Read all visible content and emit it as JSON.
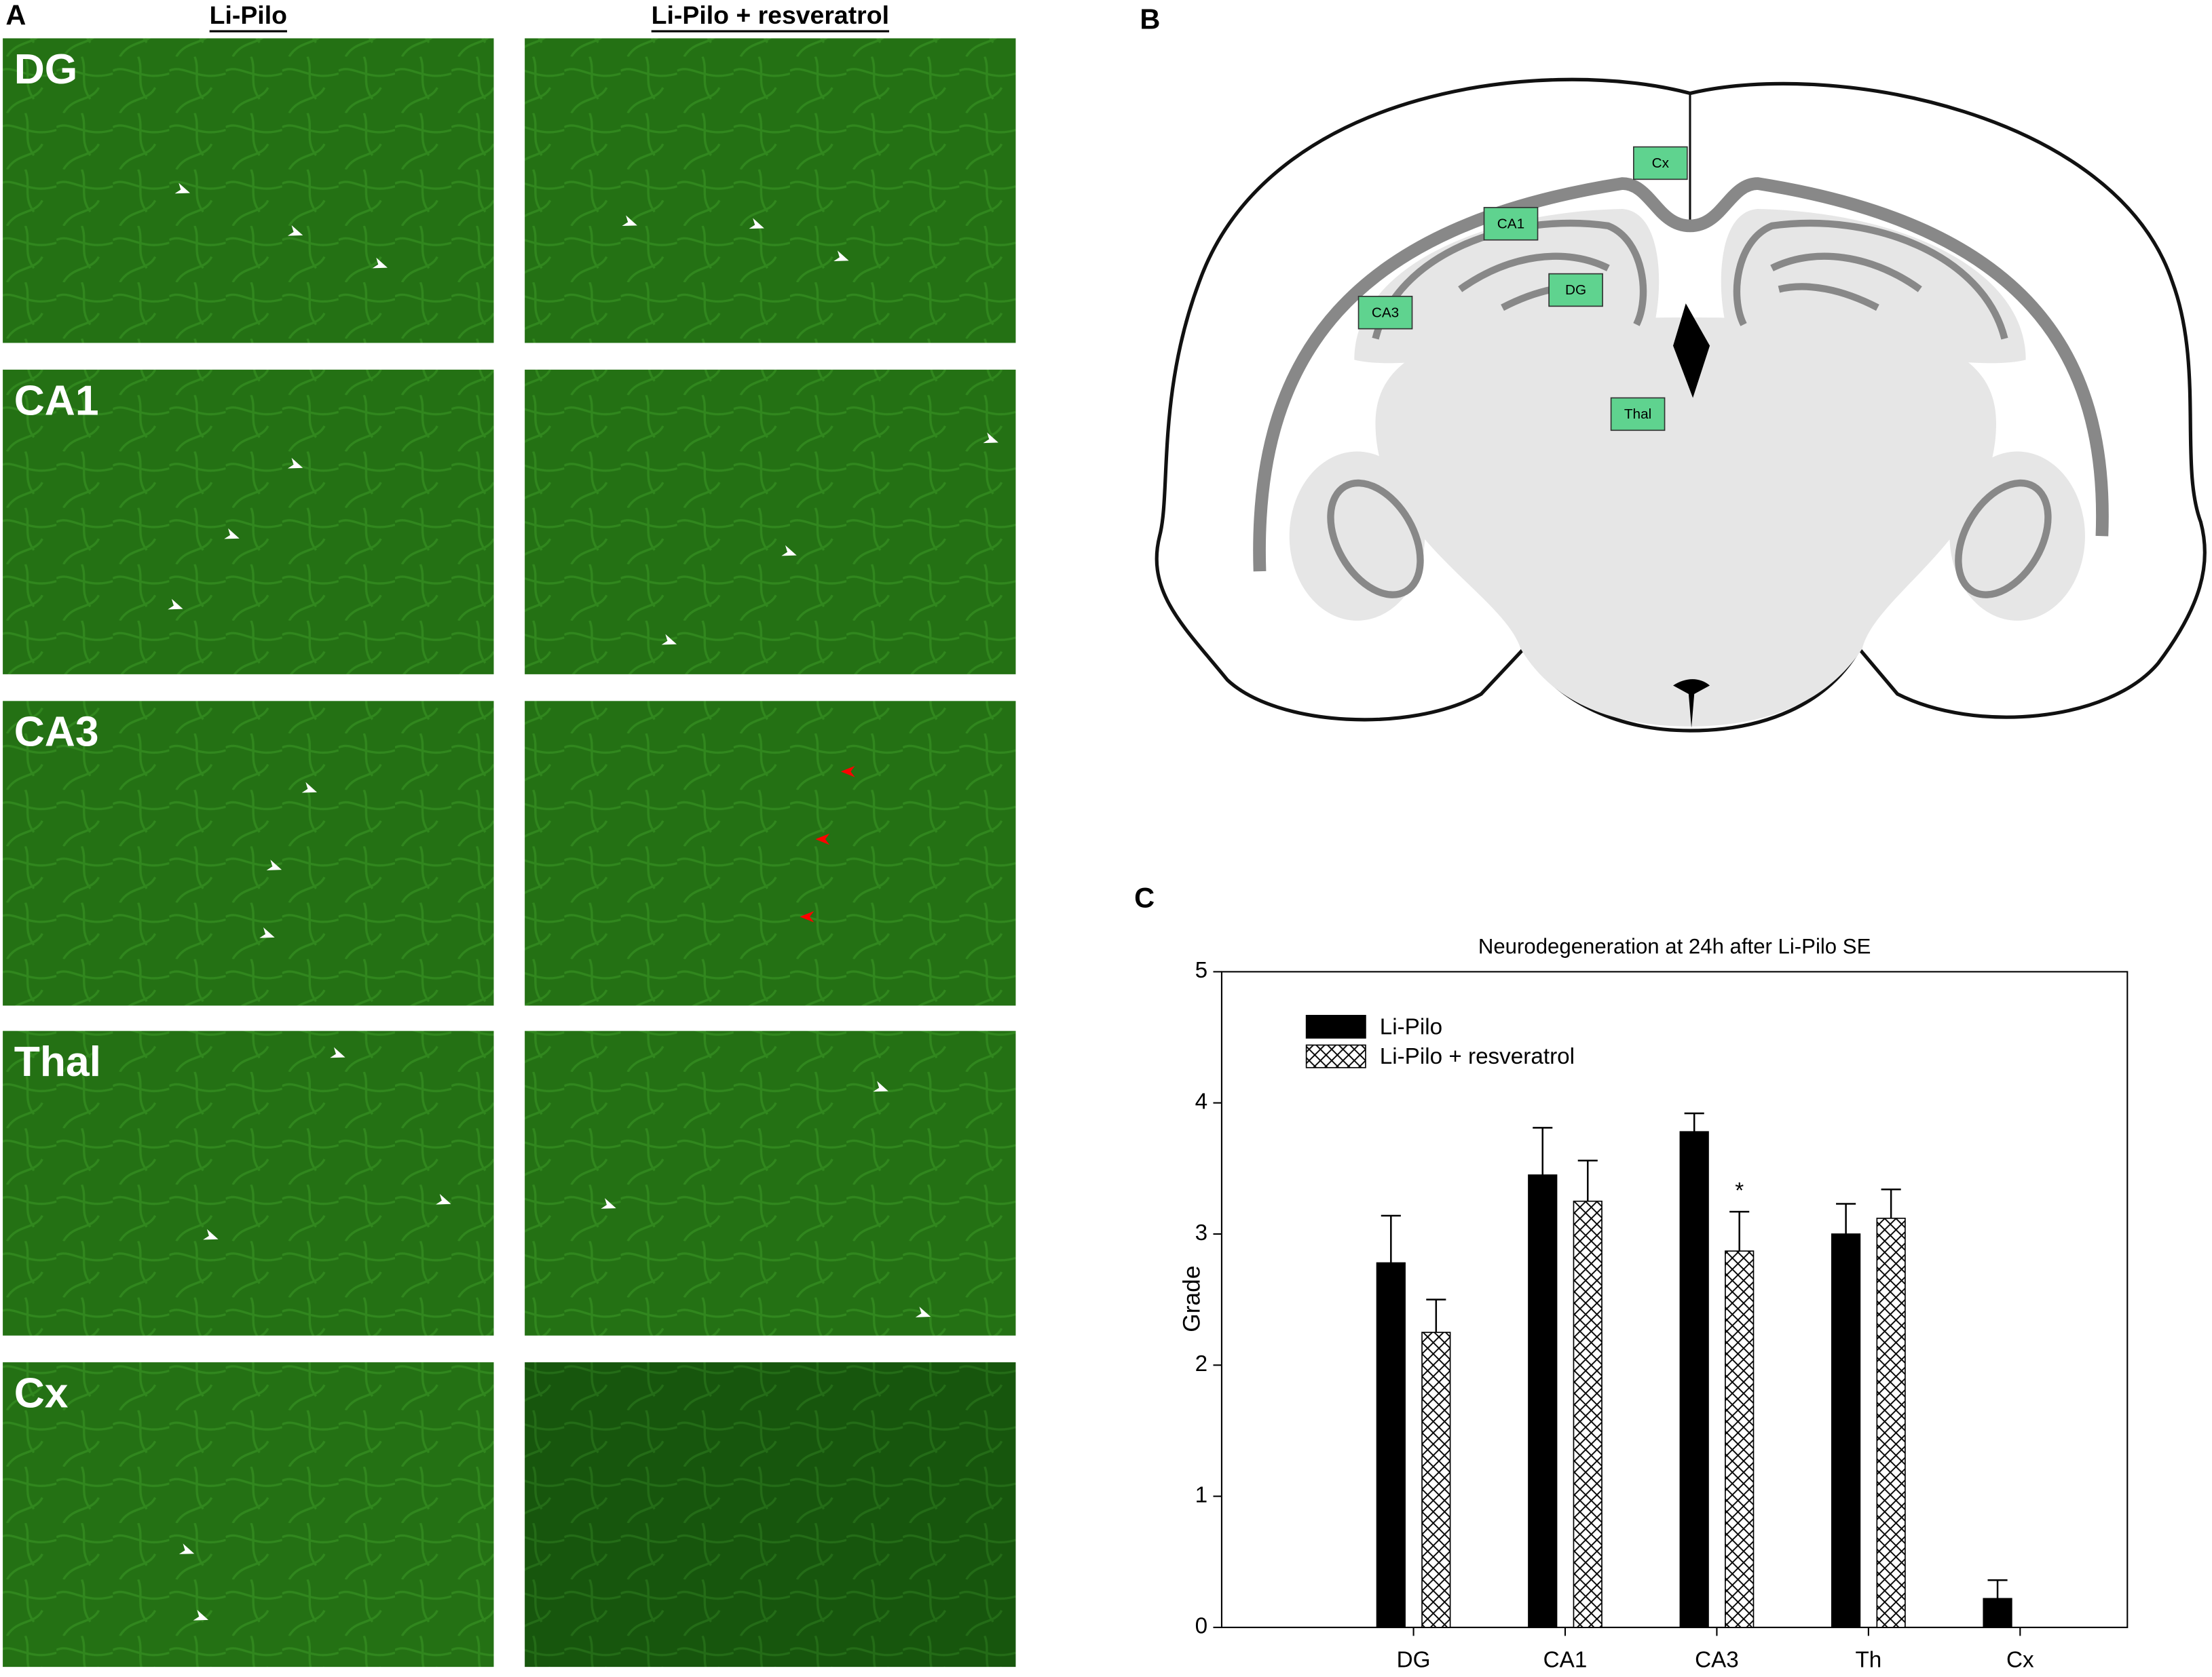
{
  "panel_a": {
    "label": "A",
    "columns": [
      "Li-Pilo",
      "Li-Pilo + resveratrol"
    ],
    "rows": [
      "DG",
      "CA1",
      "CA3",
      "Thal",
      "Cx"
    ]
  },
  "panel_b": {
    "label": "B",
    "regions": [
      "Cx",
      "CA1",
      "DG",
      "CA3",
      "Thal"
    ]
  },
  "panel_c": {
    "label": "C"
  },
  "chart_data": {
    "type": "bar",
    "title": "Neurodegeneration at 24h after Li-Pilo SE",
    "y_label": "Grade",
    "categories": [
      "DG",
      "CA1",
      "CA3",
      "Th",
      "Cx"
    ],
    "series": [
      {
        "name": "Li-Pilo",
        "color": "#000000",
        "values": [
          2.78,
          3.45,
          3.78,
          3.0,
          0.22
        ],
        "errors": [
          0.36,
          0.36,
          0.14,
          0.23,
          0.14
        ]
      },
      {
        "name": "Li-Pilo + resveratrol",
        "color": "crosshatch",
        "values": [
          2.25,
          3.25,
          2.87,
          3.12,
          0
        ],
        "errors": [
          0.25,
          0.31,
          0.3,
          0.22,
          null
        ]
      }
    ],
    "annotations": [
      {
        "text": "*",
        "series": 1,
        "category": 2
      }
    ],
    "ylim": [
      0,
      5
    ],
    "yticks": [
      0,
      1,
      2,
      3,
      4,
      5
    ],
    "legend": "upper left"
  }
}
